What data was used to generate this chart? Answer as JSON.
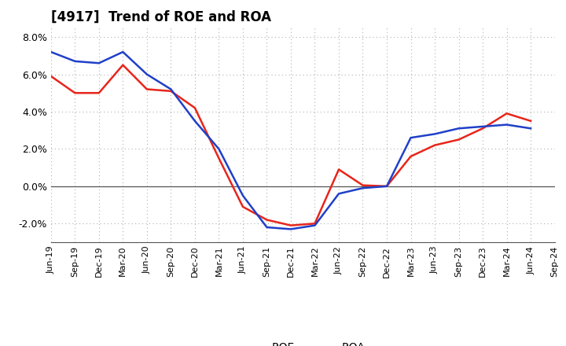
{
  "title": "[4917]  Trend of ROE and ROA",
  "x_labels": [
    "Jun-19",
    "Sep-19",
    "Dec-19",
    "Mar-20",
    "Jun-20",
    "Sep-20",
    "Dec-20",
    "Mar-21",
    "Jun-21",
    "Sep-21",
    "Dec-21",
    "Mar-22",
    "Jun-22",
    "Sep-22",
    "Dec-22",
    "Mar-23",
    "Jun-23",
    "Sep-23",
    "Dec-23",
    "Mar-24",
    "Jun-24",
    "Sep-24"
  ],
  "roe": [
    5.9,
    5.0,
    5.0,
    6.5,
    5.2,
    5.1,
    4.2,
    1.5,
    -1.1,
    -1.8,
    -2.1,
    -2.0,
    0.9,
    0.05,
    0.0,
    1.6,
    2.2,
    2.5,
    3.1,
    3.9,
    3.5,
    null
  ],
  "roa": [
    7.2,
    6.7,
    6.6,
    7.2,
    6.0,
    5.2,
    3.5,
    2.0,
    -0.5,
    -2.2,
    -2.3,
    -2.1,
    -0.4,
    -0.1,
    0.0,
    2.6,
    2.8,
    3.1,
    3.2,
    3.3,
    3.1,
    null
  ],
  "roe_color": "#e8251a",
  "roa_color": "#2040c8",
  "ylim": [
    -3.0,
    8.5
  ],
  "yticks": [
    -2.0,
    0.0,
    2.0,
    4.0,
    6.0,
    8.0
  ],
  "background_color": "#ffffff",
  "grid_color": "#b0b0b0",
  "linewidth": 1.8,
  "title_fontsize": 12,
  "tick_fontsize": 8
}
